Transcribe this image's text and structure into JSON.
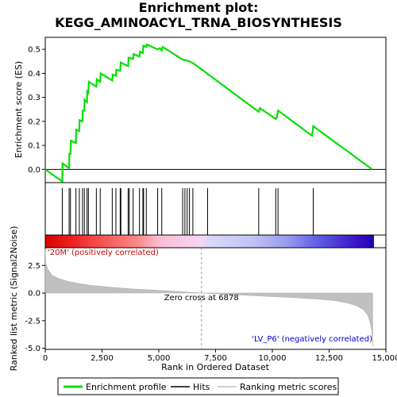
{
  "title_line1": "Enrichment plot:",
  "title_line2": "KEGG_AMINOACYL_TRNA_BIOSYNTHESIS",
  "chart_data": {
    "type": "line",
    "x_range": [
      0,
      15000
    ],
    "x_ticks": [
      0,
      2500,
      5000,
      7500,
      10000,
      12500,
      15000
    ],
    "x_tick_labels": [
      "0",
      "2,500",
      "5,000",
      "7,500",
      "10,000",
      "12,500",
      "15,000"
    ],
    "xlabel": "Rank in Ordered Dataset",
    "es_panel": {
      "ylabel": "Enrichment score (ES)",
      "ylim": [
        -0.055,
        0.55
      ],
      "y_ticks": [
        0.0,
        0.1,
        0.2,
        0.3,
        0.4,
        0.5
      ],
      "y_tick_labels": [
        "0.0",
        "0.1",
        "0.2",
        "0.3",
        "0.4",
        "0.5"
      ],
      "series_color": "#00e000",
      "points": [
        [
          0,
          0.0
        ],
        [
          750,
          -0.05
        ],
        [
          760,
          0.025
        ],
        [
          1050,
          0.005
        ],
        [
          1060,
          0.065
        ],
        [
          1110,
          0.065
        ],
        [
          1130,
          0.12
        ],
        [
          1350,
          0.11
        ],
        [
          1360,
          0.165
        ],
        [
          1500,
          0.16
        ],
        [
          1510,
          0.205
        ],
        [
          1640,
          0.2
        ],
        [
          1650,
          0.245
        ],
        [
          1720,
          0.245
        ],
        [
          1730,
          0.29
        ],
        [
          1840,
          0.28
        ],
        [
          1850,
          0.325
        ],
        [
          1900,
          0.32
        ],
        [
          1920,
          0.365
        ],
        [
          2250,
          0.345
        ],
        [
          2270,
          0.375
        ],
        [
          2420,
          0.365
        ],
        [
          2440,
          0.4
        ],
        [
          2950,
          0.37
        ],
        [
          2970,
          0.395
        ],
        [
          3110,
          0.39
        ],
        [
          3130,
          0.415
        ],
        [
          3300,
          0.41
        ],
        [
          3320,
          0.445
        ],
        [
          3650,
          0.43
        ],
        [
          3670,
          0.465
        ],
        [
          3870,
          0.46
        ],
        [
          3890,
          0.48
        ],
        [
          4150,
          0.47
        ],
        [
          4170,
          0.49
        ],
        [
          4300,
          0.485
        ],
        [
          4320,
          0.515
        ],
        [
          4450,
          0.51
        ],
        [
          4470,
          0.52
        ],
        [
          4950,
          0.5
        ],
        [
          5050,
          0.505
        ],
        [
          5130,
          0.495
        ],
        [
          5170,
          0.51
        ],
        [
          6000,
          0.46
        ],
        [
          6100,
          0.455
        ],
        [
          6200,
          0.455
        ],
        [
          6350,
          0.45
        ],
        [
          6550,
          0.44
        ],
        [
          9400,
          0.24
        ],
        [
          9450,
          0.255
        ],
        [
          10150,
          0.21
        ],
        [
          10200,
          0.215
        ],
        [
          10250,
          0.245
        ],
        [
          11750,
          0.14
        ],
        [
          11800,
          0.18
        ],
        [
          14400,
          0.0
        ]
      ]
    },
    "hits": [
      750,
      1050,
      1110,
      1350,
      1500,
      1640,
      1720,
      1840,
      1900,
      2250,
      2420,
      2950,
      3110,
      3300,
      3330,
      3650,
      3700,
      3870,
      4150,
      4300,
      4330,
      4450,
      4950,
      5130,
      6050,
      6150,
      6250,
      6350,
      6500,
      7150,
      9400,
      10150,
      10250,
      11800
    ],
    "color_bar": {
      "stops": [
        {
          "x": 0,
          "color": "#dd0000"
        },
        {
          "x": 1200,
          "color": "#ee2222"
        },
        {
          "x": 2500,
          "color": "#f45555"
        },
        {
          "x": 4000,
          "color": "#f98888"
        },
        {
          "x": 5000,
          "color": "#fcbcd4"
        },
        {
          "x": 6878,
          "color": "#f4d8f4"
        },
        {
          "x": 7200,
          "color": "#d8d8fa"
        },
        {
          "x": 9000,
          "color": "#c4c4f4"
        },
        {
          "x": 10600,
          "color": "#9a9af0"
        },
        {
          "x": 11800,
          "color": "#6464e6"
        },
        {
          "x": 13700,
          "color": "#3a10c8"
        },
        {
          "x": 14400,
          "color": "#2000b0"
        }
      ]
    },
    "metric_panel": {
      "ylabel": "Ranked list metric (Signal2Noise)",
      "ylim": [
        -5.1,
        4.1
      ],
      "y_ticks": [
        2.5,
        0.0,
        -2.5,
        -5.0
      ],
      "y_tick_labels": [
        "2.5",
        "0.0",
        "-2.5",
        "-5.0"
      ],
      "fill_color": "#c0c0c0",
      "points": [
        [
          0,
          4.0
        ],
        [
          20,
          2.7
        ],
        [
          100,
          2.2
        ],
        [
          300,
          1.6
        ],
        [
          600,
          1.3
        ],
        [
          1000,
          1.05
        ],
        [
          1500,
          0.85
        ],
        [
          2000,
          0.7
        ],
        [
          3000,
          0.5
        ],
        [
          4000,
          0.35
        ],
        [
          5000,
          0.25
        ],
        [
          6000,
          0.12
        ],
        [
          6878,
          0.0
        ],
        [
          8000,
          -0.12
        ],
        [
          9000,
          -0.22
        ],
        [
          10000,
          -0.32
        ],
        [
          11000,
          -0.42
        ],
        [
          12000,
          -0.55
        ],
        [
          12800,
          -0.7
        ],
        [
          13300,
          -0.9
        ],
        [
          13700,
          -1.15
        ],
        [
          14000,
          -1.5
        ],
        [
          14200,
          -2.0
        ],
        [
          14300,
          -2.6
        ],
        [
          14380,
          -3.5
        ],
        [
          14420,
          -4.8
        ]
      ],
      "zero_cross_label": "Zero cross at 6878",
      "zero_cross_x": 6878,
      "pos_label": "'20M' (positively correlated)",
      "neg_label": "'LV_P6' (negatively correlated)"
    },
    "legend": {
      "placement": "bottom",
      "items": [
        {
          "label": "Enrichment profile",
          "color": "#00e000"
        },
        {
          "label": "Hits",
          "color": "#000000"
        },
        {
          "label": "Ranking metric scores",
          "color": "#c0c0c0"
        }
      ]
    }
  }
}
